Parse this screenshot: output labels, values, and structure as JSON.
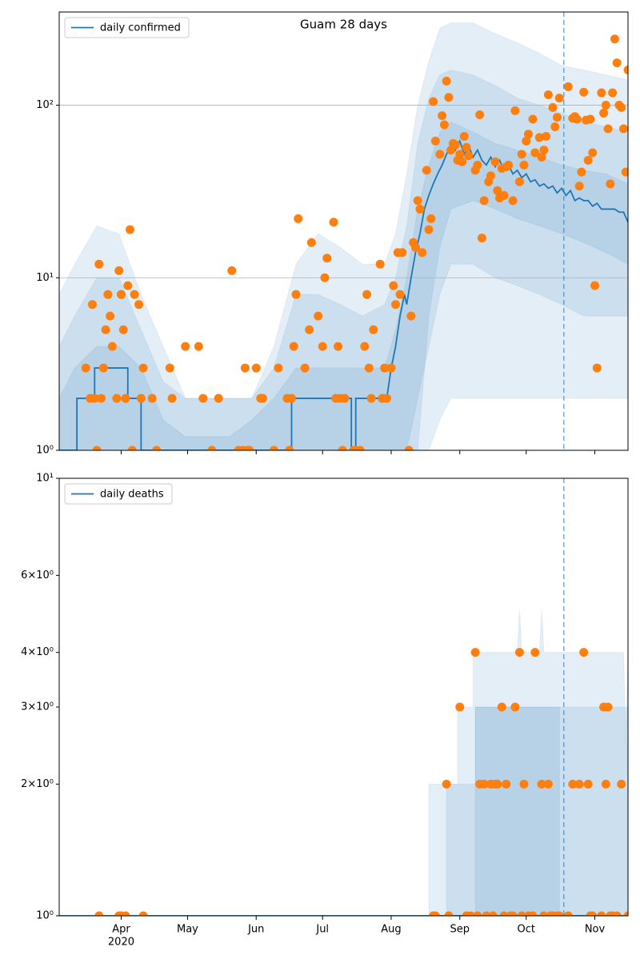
{
  "chart_data": [
    {
      "type": "line",
      "title": "Guam 28 days",
      "log_y": true,
      "grid": true,
      "legend": "upper left",
      "xlim": [
        3,
        260
      ],
      "ylim": [
        1,
        347
      ],
      "yticks": [
        {
          "value": 1,
          "label": "10⁰"
        },
        {
          "value": 10,
          "label": "10¹"
        },
        {
          "value": 100,
          "label": "10²"
        }
      ],
      "vline": 231,
      "band_color": "#1f77b4",
      "series": [
        {
          "name": "daily confirmed",
          "color": "#1f77b4",
          "x": [
            3,
            11,
            11,
            19,
            19,
            34,
            34,
            40,
            40,
            108,
            108,
            135,
            135,
            137,
            137,
            151,
            153,
            155,
            157,
            159,
            160,
            162,
            164,
            166,
            168,
            170,
            172,
            174,
            176,
            178,
            180,
            182,
            184,
            186,
            188,
            190,
            192,
            194,
            196,
            198,
            200,
            202,
            204,
            206,
            208,
            210,
            212,
            214,
            216,
            218,
            220,
            222,
            224,
            226,
            228,
            230,
            232,
            234,
            236,
            238,
            240,
            242,
            244,
            246,
            248,
            250,
            252,
            254,
            256,
            258,
            260
          ],
          "values": [
            1,
            1,
            2,
            2,
            3,
            3,
            2,
            2,
            1,
            1,
            2,
            2,
            1,
            1,
            2,
            2,
            3,
            4,
            6,
            8,
            7,
            10,
            14,
            18,
            25,
            30,
            35,
            40,
            45,
            52,
            58,
            55,
            62,
            52,
            58,
            50,
            55,
            48,
            45,
            50,
            44,
            48,
            42,
            45,
            40,
            42,
            38,
            40,
            36,
            37,
            34,
            35,
            33,
            34,
            31,
            33,
            30,
            32,
            28,
            29,
            28,
            28,
            26,
            27,
            25,
            25,
            25,
            25,
            24,
            24,
            21
          ]
        }
      ],
      "points": {
        "color": "#ff7f0e",
        "x": [
          15,
          17,
          18,
          19,
          20,
          21,
          22,
          23,
          24,
          25,
          26,
          27,
          29,
          30,
          31,
          32,
          33,
          34,
          35,
          36,
          37,
          39,
          40,
          41,
          45,
          47,
          53,
          54,
          60,
          66,
          68,
          72,
          75,
          81,
          84,
          86,
          87,
          88,
          89,
          92,
          94,
          95,
          100,
          102,
          106,
          107,
          108,
          109,
          110,
          111,
          114,
          116,
          117,
          120,
          122,
          123,
          124,
          127,
          128,
          129,
          130,
          131,
          132,
          136,
          137,
          139,
          141,
          142,
          143,
          144,
          145,
          148,
          149,
          150,
          151,
          153,
          154,
          155,
          156,
          157,
          158,
          161,
          162,
          163,
          164,
          165,
          166,
          167,
          169,
          170,
          171,
          172,
          173,
          175,
          176,
          177,
          178,
          179,
          180,
          181,
          182,
          183,
          184,
          185,
          186,
          187,
          188,
          191,
          192,
          193,
          194,
          195,
          197,
          198,
          200,
          201,
          202,
          203,
          204,
          205,
          206,
          208,
          209,
          211,
          212,
          213,
          214,
          215,
          217,
          218,
          220,
          221,
          222,
          223,
          224,
          226,
          227,
          228,
          229,
          233,
          235,
          236,
          237,
          238,
          239,
          240,
          241,
          242,
          243,
          244,
          245,
          246,
          248,
          249,
          250,
          251,
          252,
          253,
          254,
          255,
          256,
          257,
          258,
          259,
          260
        ],
        "values": [
          3,
          2,
          7,
          2,
          1,
          12,
          2,
          3,
          5,
          8,
          6,
          4,
          2,
          11,
          8,
          5,
          2,
          9,
          19,
          1,
          8,
          7,
          2,
          3,
          2,
          1,
          3,
          2,
          4,
          4,
          2,
          1,
          2,
          11,
          1,
          1,
          3,
          1,
          1,
          3,
          2,
          2,
          1,
          3,
          2,
          1,
          2,
          4,
          8,
          22,
          3,
          5,
          16,
          6,
          4,
          10,
          13,
          21,
          2,
          4,
          2,
          1,
          2,
          1,
          1,
          1,
          4,
          8,
          3,
          2,
          5,
          12,
          2,
          3,
          2,
          3,
          9,
          7,
          14,
          8,
          14,
          1,
          6,
          16,
          15,
          28,
          25,
          14,
          42,
          19,
          22,
          105,
          62,
          52,
          87,
          77,
          138,
          111,
          55,
          60,
          59,
          48,
          52,
          47,
          66,
          57,
          51,
          42,
          45,
          88,
          17,
          28,
          36,
          39,
          47,
          32,
          29,
          43,
          30,
          44,
          45,
          28,
          93,
          36,
          52,
          45,
          62,
          68,
          83,
          53,
          65,
          50,
          55,
          66,
          115,
          97,
          75,
          85,
          110,
          128,
          84,
          86,
          83,
          34,
          41,
          119,
          82,
          48,
          83,
          53,
          9,
          3,
          118,
          90,
          100,
          73,
          35,
          118,
          242,
          176,
          100,
          97,
          73,
          41,
          160
        ]
      },
      "bands": [
        {
          "x": [
            3,
            10,
            20,
            30,
            40,
            50,
            60,
            70,
            80,
            90,
            100,
            110,
            120,
            130,
            140,
            150,
            155,
            160,
            165,
            170,
            175,
            180,
            190,
            200,
            210,
            220,
            230,
            240,
            250,
            260
          ],
          "upper": [
            8,
            12,
            20,
            18,
            8,
            4,
            2,
            2,
            2,
            2,
            4,
            12,
            18,
            15,
            12,
            12,
            18,
            40,
            100,
            180,
            280,
            300,
            300,
            260,
            230,
            200,
            170,
            160,
            150,
            140
          ],
          "lower": [
            1,
            1,
            1,
            1,
            1,
            1,
            1,
            1,
            1,
            1,
            1,
            1,
            1,
            1,
            1,
            1,
            1,
            1,
            1,
            1,
            1.5,
            2,
            2,
            2,
            2,
            2,
            2,
            2,
            2,
            2
          ]
        },
        {
          "x": [
            3,
            10,
            20,
            30,
            40,
            50,
            60,
            70,
            80,
            90,
            100,
            110,
            120,
            130,
            140,
            150,
            155,
            160,
            165,
            170,
            175,
            180,
            190,
            200,
            210,
            220,
            230,
            240,
            250,
            260
          ],
          "upper": [
            4,
            6,
            10,
            10,
            5,
            2.5,
            2,
            2,
            2,
            2,
            3,
            8,
            8,
            7,
            6,
            7,
            10,
            20,
            60,
            110,
            150,
            160,
            150,
            130,
            110,
            100,
            90,
            80,
            75,
            70
          ],
          "lower": [
            1,
            1,
            1,
            1,
            1,
            1,
            1,
            1,
            1,
            1,
            1,
            1,
            1,
            1,
            1,
            1,
            1,
            1,
            2,
            4,
            8,
            12,
            12,
            10,
            9,
            8,
            7,
            6,
            6,
            6
          ]
        },
        {
          "x": [
            3,
            10,
            20,
            30,
            40,
            50,
            60,
            70,
            80,
            90,
            100,
            110,
            120,
            130,
            140,
            150,
            155,
            160,
            165,
            170,
            175,
            180,
            190,
            200,
            210,
            220,
            230,
            240,
            250,
            260
          ],
          "upper": [
            2,
            3,
            4,
            4,
            3,
            1.5,
            1.2,
            1.2,
            1.2,
            1.5,
            2,
            3,
            3,
            3,
            3,
            3,
            5,
            10,
            25,
            45,
            70,
            80,
            70,
            60,
            55,
            50,
            45,
            42,
            40,
            35
          ],
          "lower": [
            1,
            1,
            1,
            1,
            1,
            1,
            1,
            1,
            1,
            1,
            1,
            1,
            1,
            1,
            1,
            1,
            1,
            1,
            1,
            6,
            15,
            25,
            28,
            25,
            22,
            20,
            18,
            16,
            14,
            12
          ]
        }
      ]
    },
    {
      "type": "line",
      "log_y": true,
      "grid": false,
      "legend": "upper left",
      "xlim": [
        3,
        260
      ],
      "ylim": [
        1,
        10
      ],
      "xticks": [
        {
          "value": 31,
          "label": "Apr",
          "sublabel": "2020"
        },
        {
          "value": 61,
          "label": "May"
        },
        {
          "value": 92,
          "label": "Jun"
        },
        {
          "value": 122,
          "label": "Jul"
        },
        {
          "value": 153,
          "label": "Aug"
        },
        {
          "value": 184,
          "label": "Sep"
        },
        {
          "value": 214,
          "label": "Oct"
        },
        {
          "value": 245,
          "label": "Nov"
        }
      ],
      "yticks": [
        {
          "value": 1,
          "label": "10⁰"
        },
        {
          "value": 2,
          "label": "2×10⁰"
        },
        {
          "value": 3,
          "label": "3×10⁰"
        },
        {
          "value": 4,
          "label": "4×10⁰"
        },
        {
          "value": 6,
          "label": "6×10⁰"
        },
        {
          "value": 10,
          "label": "10¹"
        }
      ],
      "vline": 231,
      "band_color": "#1f77b4",
      "series": [
        {
          "name": "daily deaths",
          "color": "#1f77b4",
          "x": [
            3,
            260
          ],
          "values": [
            1,
            1
          ]
        }
      ],
      "points": {
        "color": "#ff7f0e",
        "x": [
          21,
          30,
          31,
          33,
          41,
          172,
          173,
          178,
          179,
          184,
          187,
          189,
          191,
          192,
          193,
          195,
          196,
          198,
          199,
          200,
          201,
          203,
          204,
          205,
          207,
          208,
          209,
          211,
          212,
          213,
          215,
          217,
          218,
          221,
          222,
          224,
          225,
          226,
          228,
          229,
          233,
          235,
          238,
          240,
          242,
          243,
          244,
          248,
          249,
          250,
          251,
          252,
          253,
          255,
          257,
          260
        ],
        "values": [
          1,
          1,
          1,
          1,
          1,
          1,
          1,
          2,
          1,
          3,
          1,
          1,
          4,
          1,
          2,
          2,
          1,
          2,
          1,
          2,
          2,
          3,
          1,
          2,
          1,
          1,
          3,
          4,
          1,
          2,
          1,
          1,
          4,
          2,
          1,
          2,
          1,
          1,
          1,
          1,
          1,
          2,
          2,
          4,
          2,
          1,
          1,
          1,
          3,
          2,
          3,
          1,
          1,
          1,
          2,
          1
        ]
      },
      "bands": [
        {
          "x": [
            170,
            183,
            183,
            190,
            190,
            210,
            211,
            212,
            220,
            221,
            222,
            258,
            259,
            260
          ],
          "upper": [
            2,
            2,
            3,
            3,
            4,
            4,
            5,
            4,
            4,
            5,
            4,
            4,
            2.5,
            4
          ],
          "lower": [
            1,
            1,
            1,
            1,
            1,
            1,
            1,
            1,
            1,
            1,
            1,
            1,
            1,
            1
          ]
        },
        {
          "x": [
            178,
            191,
            191,
            230,
            230,
            260
          ],
          "upper": [
            2,
            2,
            3,
            3,
            3,
            3
          ],
          "lower": [
            1,
            1,
            1,
            1,
            1,
            1
          ]
        },
        {
          "x": [
            191,
            229
          ],
          "upper": [
            3,
            3
          ],
          "lower": [
            1,
            1
          ]
        }
      ]
    }
  ]
}
